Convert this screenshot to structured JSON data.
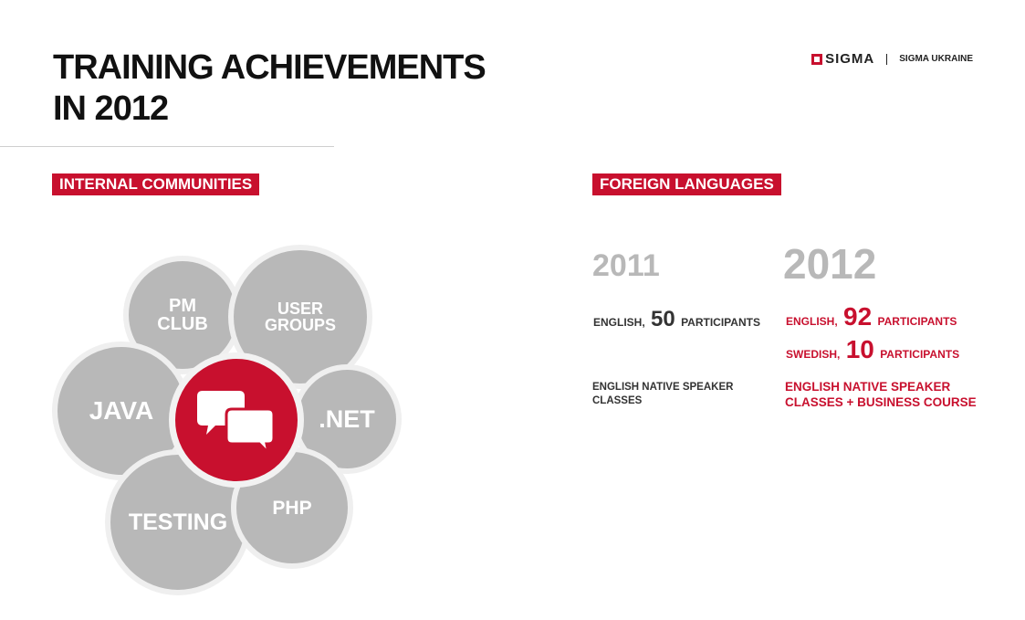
{
  "title": {
    "line1": "TRAINING ACHIEVEMENTS",
    "line2": "IN 2012"
  },
  "brand": {
    "name": "SIGMA",
    "division": "SIGMA UKRAINE"
  },
  "sections": {
    "internal": "INTERNAL COMMUNITIES",
    "foreign": "FOREIGN LANGUAGES"
  },
  "communities": {
    "pm_club": {
      "line1": "PM",
      "line2": "CLUB"
    },
    "user_groups": {
      "line1": "USER",
      "line2": "GROUPS"
    },
    "java": "JAVA",
    "net": ".NET",
    "testing": "TESTING",
    "php": "PHP",
    "center_icon": "chat-bubbles-icon"
  },
  "languages": {
    "y2011": {
      "year": "2011",
      "english": {
        "prefix": "ENGLISH,",
        "count": "50",
        "suffix": "PARTICIPANTS"
      },
      "native": {
        "line1": "ENGLISH NATIVE SPEAKER",
        "line2": "CLASSES"
      }
    },
    "y2012": {
      "year": "2012",
      "english": {
        "prefix": "ENGLISH,",
        "count": "92",
        "suffix": "PARTICIPANTS"
      },
      "swedish": {
        "prefix": "SWEDISH,",
        "count": "10",
        "suffix": "PARTICIPANTS"
      },
      "native": {
        "line1": "ENGLISH NATIVE SPEAKER",
        "line2": "CLASSES + BUSINESS COURSE"
      }
    }
  },
  "colors": {
    "accent": "#c8102e",
    "bubble": "#b8b8b8",
    "year": "#b8b8b8"
  }
}
